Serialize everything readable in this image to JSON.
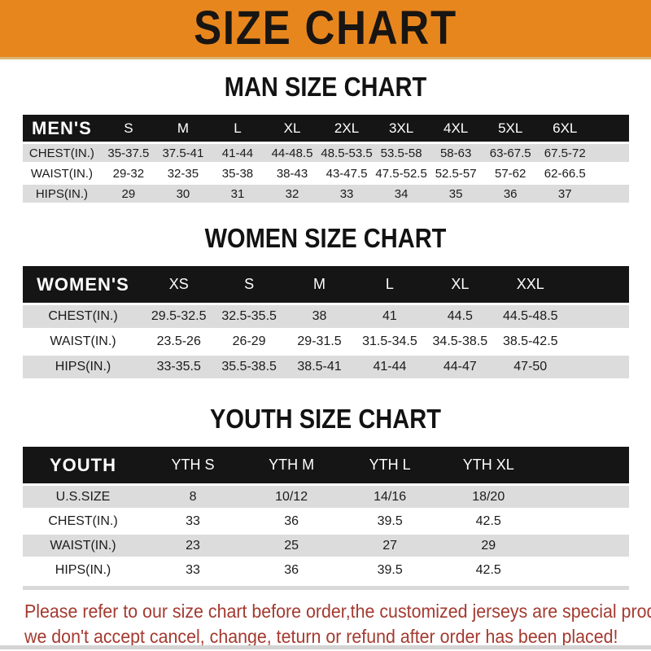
{
  "banner": {
    "title": "SIZE CHART",
    "bg_color": "#e8861e",
    "text_color": "#181512"
  },
  "sections": [
    {
      "heading": "MAN SIZE CHART",
      "header_label": "MEN'S",
      "columns": [
        "S",
        "M",
        "L",
        "XL",
        "2XL",
        "3XL",
        "4XL",
        "5XL",
        "6XL"
      ],
      "rows": [
        {
          "label": "CHEST(IN.)",
          "values": [
            "35-37.5",
            "37.5-41",
            "41-44",
            "44-48.5",
            "48.5-53.5",
            "53.5-58",
            "58-63",
            "63-67.5",
            "67.5-72"
          ]
        },
        {
          "label": "WAIST(IN.)",
          "values": [
            "29-32",
            "32-35",
            "35-38",
            "38-43",
            "43-47.5",
            "47.5-52.5",
            "52.5-57",
            "57-62",
            "62-66.5"
          ]
        },
        {
          "label": "HIPS(IN.)",
          "values": [
            "29",
            "30",
            "31",
            "32",
            "33",
            "34",
            "35",
            "36",
            "37"
          ]
        }
      ]
    },
    {
      "heading": "WOMEN SIZE CHART",
      "header_label": "WOMEN'S",
      "columns": [
        "XS",
        "S",
        "M",
        "L",
        "XL",
        "XXL"
      ],
      "rows": [
        {
          "label": "CHEST(IN.)",
          "values": [
            "29.5-32.5",
            "32.5-35.5",
            "38",
            "41",
            "44.5",
            "44.5-48.5"
          ]
        },
        {
          "label": "WAIST(IN.)",
          "values": [
            "23.5-26",
            "26-29",
            "29-31.5",
            "31.5-34.5",
            "34.5-38.5",
            "38.5-42.5"
          ]
        },
        {
          "label": "HIPS(IN.)",
          "values": [
            "33-35.5",
            "35.5-38.5",
            "38.5-41",
            "41-44",
            "44-47",
            "47-50"
          ]
        }
      ]
    },
    {
      "heading": "YOUTH SIZE CHART",
      "header_label": "YOUTH",
      "columns": [
        "YTH S",
        "YTH M",
        "YTH L",
        "YTH XL"
      ],
      "rows": [
        {
          "label": "U.S.SIZE",
          "values": [
            "8",
            "10/12",
            "14/16",
            "18/20"
          ]
        },
        {
          "label": "CHEST(IN.)",
          "values": [
            "33",
            "36",
            "39.5",
            "42.5"
          ]
        },
        {
          "label": "WAIST(IN.)",
          "values": [
            "23",
            "25",
            "27",
            "29"
          ]
        },
        {
          "label": "HIPS(IN.)",
          "values": [
            "33",
            "36",
            "39.5",
            "42.5"
          ]
        }
      ]
    }
  ],
  "disclaimer": {
    "line1": "Please refer to our size chart before order,the customized jerseys are special products,",
    "line2": "we don't accept cancel, change, teturn or refund after order has been placed!",
    "text_color": "#a43a30"
  },
  "colors": {
    "header_bar": "#151515",
    "row_alt": "#dcdcdc",
    "row_base": "#ffffff"
  }
}
